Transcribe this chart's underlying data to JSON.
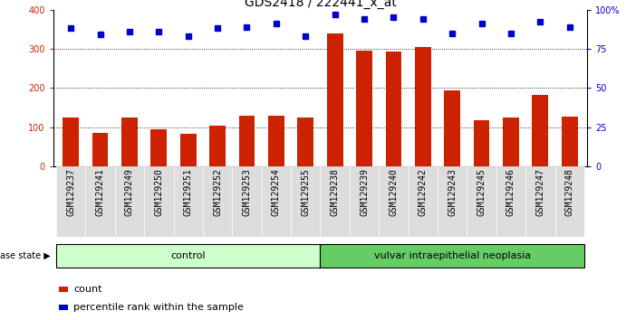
{
  "title": "GDS2418 / 222441_x_at",
  "samples": [
    "GSM129237",
    "GSM129241",
    "GSM129249",
    "GSM129250",
    "GSM129251",
    "GSM129252",
    "GSM129253",
    "GSM129254",
    "GSM129255",
    "GSM129238",
    "GSM129239",
    "GSM129240",
    "GSM129242",
    "GSM129243",
    "GSM129245",
    "GSM129246",
    "GSM129247",
    "GSM129248"
  ],
  "counts": [
    125,
    85,
    125,
    95,
    83,
    105,
    130,
    130,
    125,
    340,
    295,
    293,
    305,
    193,
    117,
    125,
    183,
    128
  ],
  "percentiles": [
    88,
    84,
    86,
    86,
    83,
    88,
    89,
    91,
    83,
    97,
    94,
    95,
    94,
    85,
    91,
    85,
    92,
    89
  ],
  "n_control": 9,
  "control_color": "#ccffcc",
  "neoplasia_color": "#66cc66",
  "bar_color": "#cc2200",
  "dot_color": "#0000cc",
  "ticklabel_bg": "#dddddd",
  "ylim_left": [
    0,
    400
  ],
  "ylim_right": [
    0,
    100
  ],
  "yticks_left": [
    0,
    100,
    200,
    300,
    400
  ],
  "yticks_right": [
    0,
    25,
    50,
    75,
    100
  ],
  "yticklabels_right": [
    "0",
    "25",
    "50",
    "75",
    "100%"
  ],
  "grid_values": [
    100,
    200,
    300
  ],
  "disease_state_label": "disease state",
  "control_label": "control",
  "neoplasia_label": "vulvar intraepithelial neoplasia",
  "legend_bar_label": "count",
  "legend_dot_label": "percentile rank within the sample",
  "title_fontsize": 10,
  "tick_fontsize": 7,
  "label_fontsize": 8,
  "group_fontsize": 8
}
